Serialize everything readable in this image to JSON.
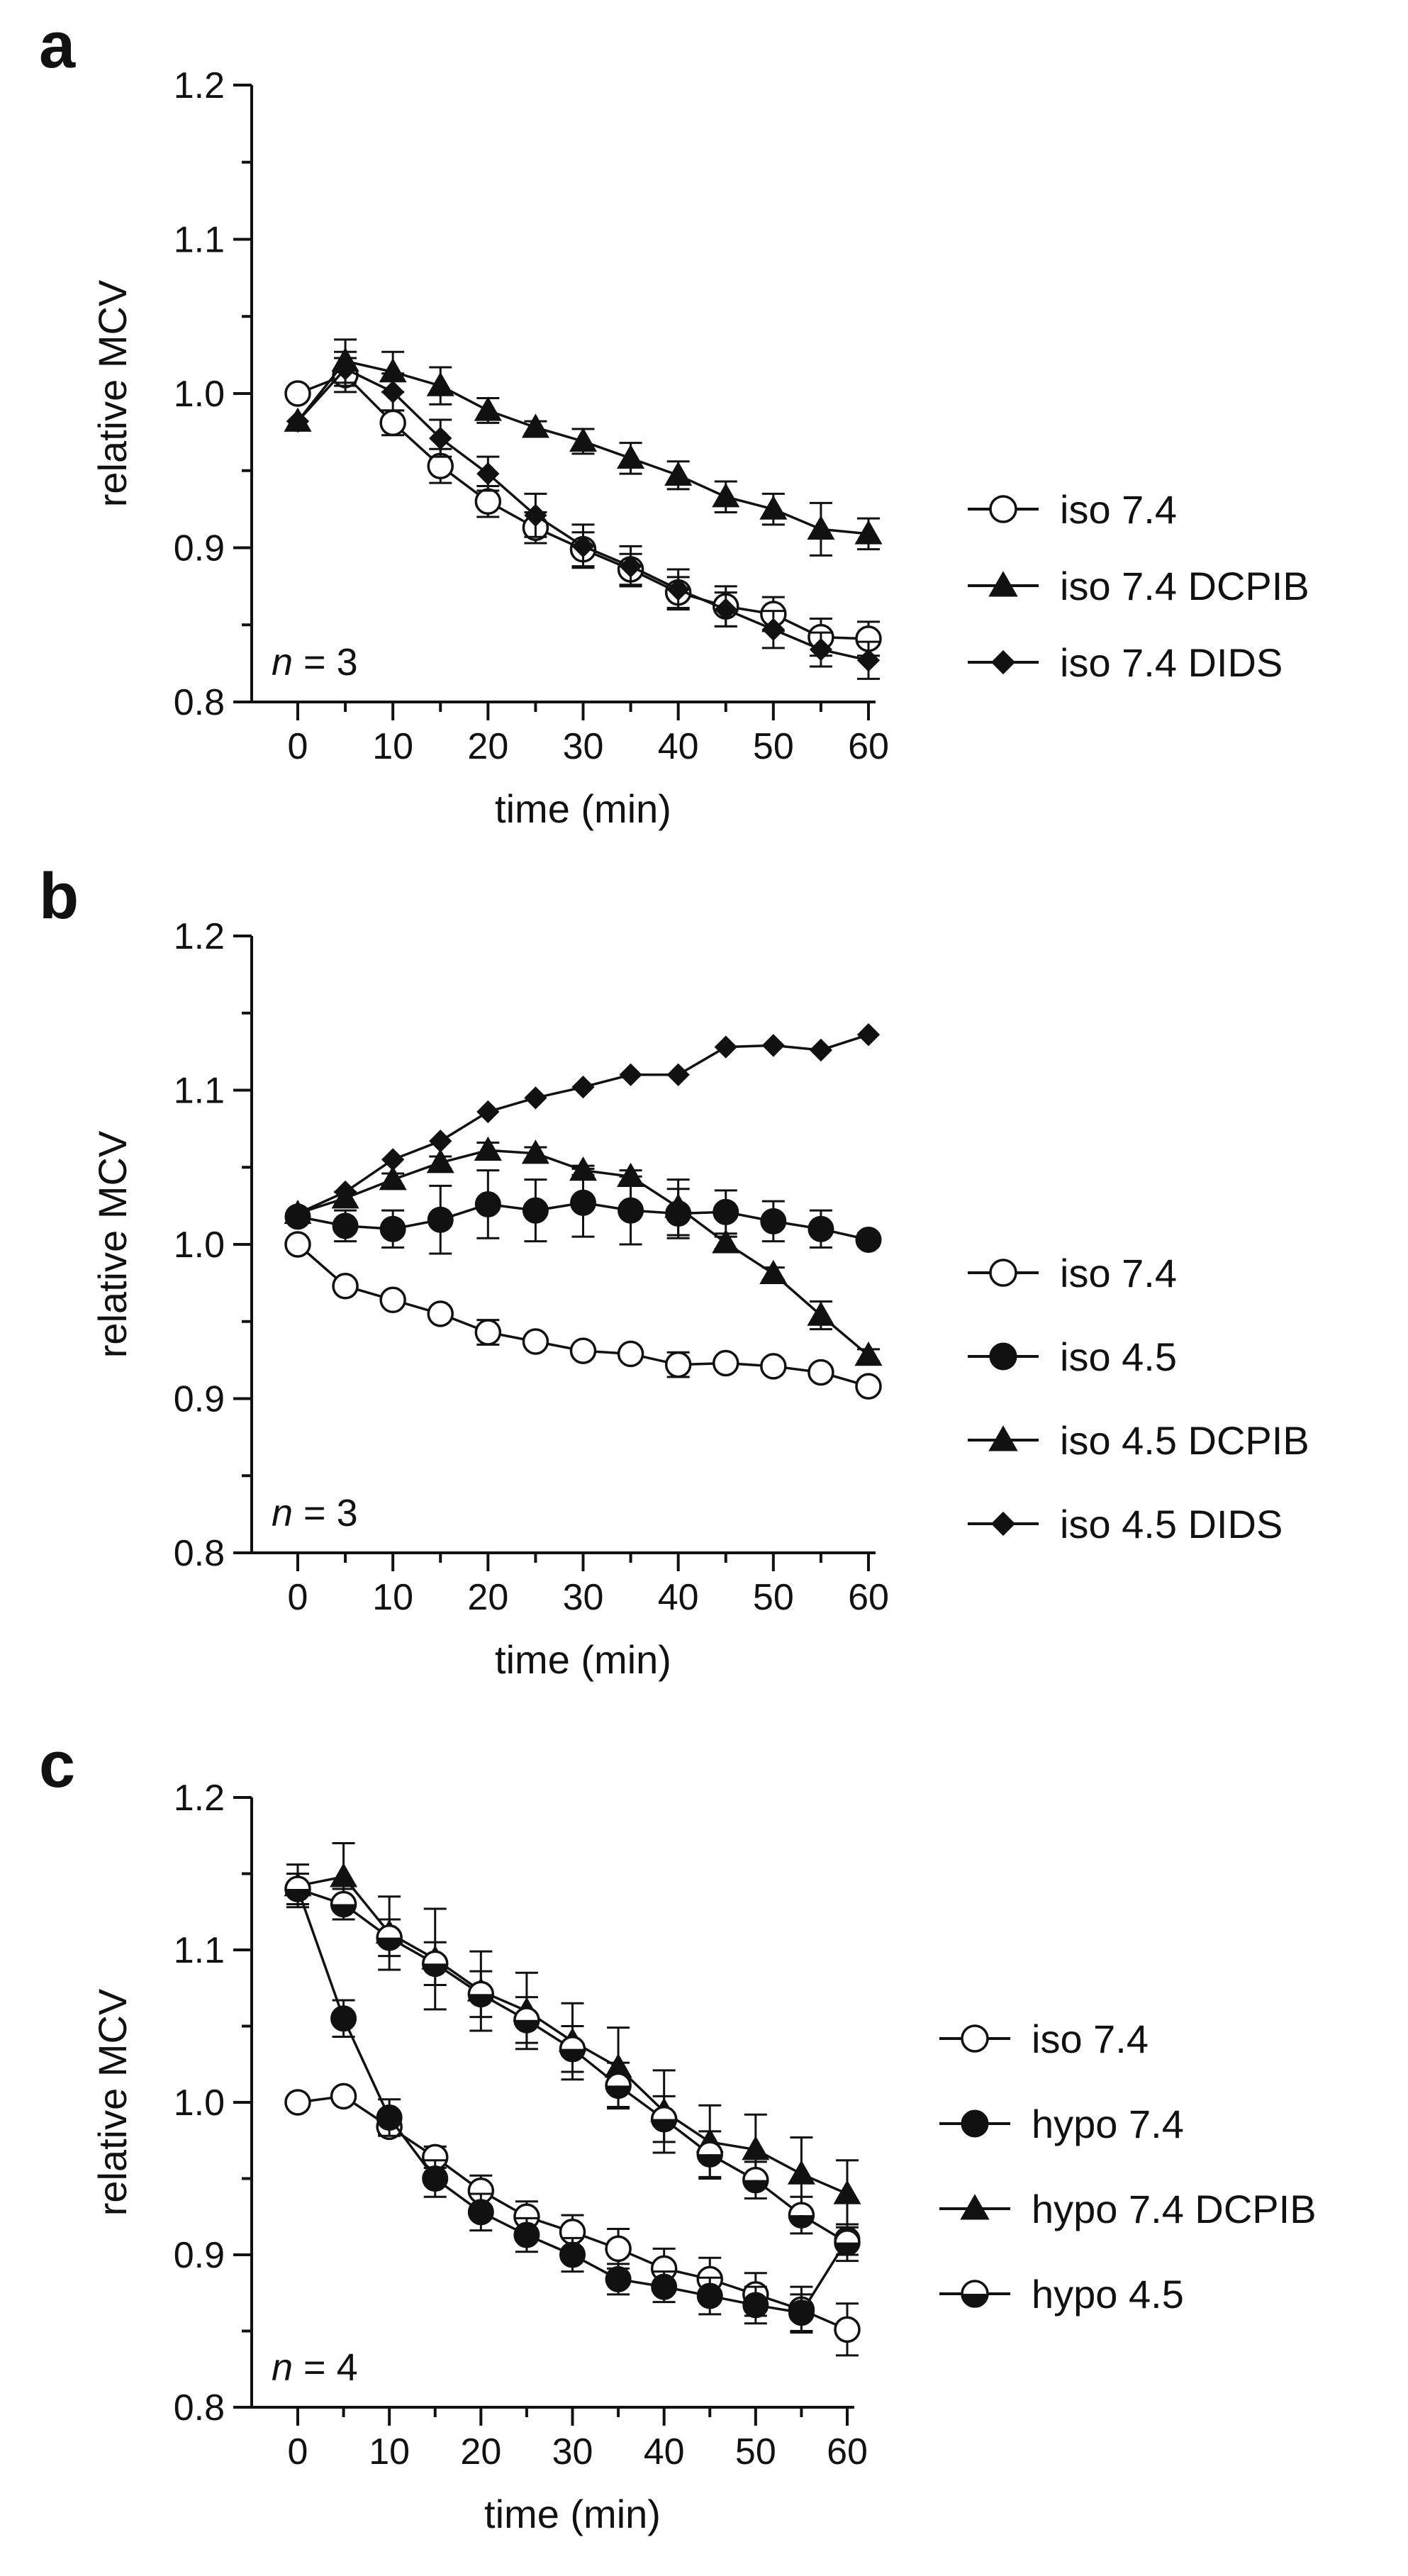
{
  "chart_data": [
    {
      "panel_label": "a",
      "type": "line",
      "xlabel": "time (min)",
      "ylabel": "relative MCV",
      "xlim": [
        0,
        60
      ],
      "ylim": [
        0.8,
        1.2
      ],
      "xticks": [
        0,
        10,
        20,
        30,
        40,
        50,
        60
      ],
      "yticks": [
        "0.8",
        "0.9",
        "1.0",
        "1.1",
        "1.2"
      ],
      "annotation": {
        "italic": "n",
        "rest": " = 3"
      },
      "legend_position": "right",
      "grid": false,
      "x": [
        0,
        5,
        10,
        15,
        20,
        25,
        30,
        35,
        40,
        45,
        50,
        55,
        60
      ],
      "series": [
        {
          "name": "iso 7.4",
          "marker": "circle-open",
          "values": [
            1.0,
            1.012,
            0.981,
            0.953,
            0.93,
            0.913,
            0.899,
            0.886,
            0.871,
            0.862,
            0.857,
            0.842,
            0.841
          ],
          "errors": [
            0.0,
            0.011,
            0.008,
            0.011,
            0.01,
            0.01,
            0.011,
            0.01,
            0.01,
            0.013,
            0.011,
            0.012,
            0.011
          ]
        },
        {
          "name": "iso 7.4 DCPIB",
          "marker": "triangle-filled",
          "values": [
            0.982,
            1.021,
            1.014,
            1.005,
            0.989,
            0.978,
            0.969,
            0.958,
            0.947,
            0.933,
            0.925,
            0.912,
            0.909
          ],
          "errors": [
            0.0,
            0.014,
            0.013,
            0.012,
            0.008,
            0.004,
            0.008,
            0.01,
            0.009,
            0.01,
            0.01,
            0.017,
            0.01
          ]
        },
        {
          "name": "iso 7.4 DIDS",
          "marker": "diamond-filled",
          "values": [
            0.982,
            1.016,
            1.001,
            0.971,
            0.948,
            0.921,
            0.901,
            0.888,
            0.873,
            0.86,
            0.847,
            0.834,
            0.827
          ],
          "errors": [
            0.0,
            0.011,
            0.012,
            0.012,
            0.011,
            0.014,
            0.014,
            0.013,
            0.013,
            0.011,
            0.012,
            0.011,
            0.012
          ]
        }
      ]
    },
    {
      "panel_label": "b",
      "type": "line",
      "xlabel": "time (min)",
      "ylabel": "relative MCV",
      "xlim": [
        0,
        60
      ],
      "ylim": [
        0.8,
        1.2
      ],
      "xticks": [
        0,
        10,
        20,
        30,
        40,
        50,
        60
      ],
      "yticks": [
        "0.8",
        "0.9",
        "1.0",
        "1.1",
        "1.2"
      ],
      "annotation": {
        "italic": "n",
        "rest": " = 3"
      },
      "legend_position": "right",
      "grid": false,
      "x": [
        0,
        5,
        10,
        15,
        20,
        25,
        30,
        35,
        40,
        45,
        50,
        55,
        60
      ],
      "series": [
        {
          "name": "iso 7.4",
          "marker": "circle-open",
          "values": [
            1.0,
            0.973,
            0.964,
            0.955,
            0.943,
            0.937,
            0.931,
            0.929,
            0.922,
            0.923,
            0.921,
            0.917,
            0.908
          ],
          "errors": [
            0.0,
            0.003,
            0.003,
            0.003,
            0.008,
            0.003,
            0.003,
            0.003,
            0.008,
            0.003,
            0.003,
            0.003,
            0.003
          ]
        },
        {
          "name": "iso 4.5",
          "marker": "circle-filled",
          "values": [
            1.018,
            1.012,
            1.01,
            1.016,
            1.026,
            1.022,
            1.027,
            1.022,
            1.02,
            1.021,
            1.015,
            1.01,
            1.003
          ],
          "errors": [
            0.0,
            0.01,
            0.012,
            0.022,
            0.022,
            0.02,
            0.022,
            0.022,
            0.016,
            0.014,
            0.013,
            0.012,
            0.004
          ]
        },
        {
          "name": "iso 4.5 DCPIB",
          "marker": "triangle-filled",
          "values": [
            1.02,
            1.03,
            1.042,
            1.053,
            1.061,
            1.059,
            1.048,
            1.044,
            1.024,
            1.001,
            0.981,
            0.954,
            0.928
          ],
          "errors": [
            0.0,
            0.004,
            0.004,
            0.004,
            0.005,
            0.004,
            0.003,
            0.004,
            0.018,
            0.004,
            0.004,
            0.009,
            0.004
          ]
        },
        {
          "name": "iso 4.5 DIDS",
          "marker": "diamond-filled",
          "values": [
            1.02,
            1.034,
            1.055,
            1.067,
            1.086,
            1.095,
            1.102,
            1.11,
            1.11,
            1.128,
            1.129,
            1.126,
            1.136
          ],
          "errors": [
            0.0,
            0.0,
            0.0,
            0.0,
            0.0,
            0.0,
            0.0,
            0.0,
            0.0,
            0.0,
            0.0,
            0.0,
            0.0
          ]
        }
      ]
    },
    {
      "panel_label": "c",
      "type": "line",
      "xlabel": "time (min)",
      "ylabel": "relative MCV",
      "xlim": [
        0,
        60
      ],
      "ylim": [
        0.8,
        1.2
      ],
      "xticks": [
        0,
        10,
        20,
        30,
        40,
        50,
        60
      ],
      "yticks": [
        "0.8",
        "0.9",
        "1.0",
        "1.1",
        "1.2"
      ],
      "annotation": {
        "italic": "n",
        "rest": " = 4"
      },
      "legend_position": "right",
      "grid": false,
      "x": [
        0,
        5,
        10,
        15,
        20,
        25,
        30,
        35,
        40,
        45,
        50,
        55,
        60
      ],
      "series": [
        {
          "name": "iso 7.4",
          "marker": "circle-open",
          "values": [
            1.0,
            1.004,
            0.984,
            0.964,
            0.942,
            0.925,
            0.915,
            0.904,
            0.891,
            0.884,
            0.874,
            0.864,
            0.851
          ],
          "errors": [
            0.0,
            0.003,
            0.005,
            0.007,
            0.01,
            0.01,
            0.011,
            0.013,
            0.013,
            0.014,
            0.014,
            0.015,
            0.017
          ]
        },
        {
          "name": "hypo 7.4",
          "marker": "circle-filled",
          "values": [
            1.14,
            1.055,
            0.99,
            0.95,
            0.928,
            0.913,
            0.9,
            0.884,
            0.879,
            0.873,
            0.867,
            0.862,
            0.91
          ],
          "errors": [
            0.01,
            0.012,
            0.012,
            0.012,
            0.012,
            0.011,
            0.011,
            0.01,
            0.01,
            0.012,
            0.012,
            0.012,
            0.01
          ]
        },
        {
          "name": "hypo 7.4 DCPIB",
          "marker": "triangle-filled",
          "values": [
            1.142,
            1.148,
            1.111,
            1.094,
            1.073,
            1.06,
            1.04,
            1.023,
            0.994,
            0.974,
            0.969,
            0.953,
            0.94
          ],
          "errors": [
            0.014,
            0.022,
            0.024,
            0.033,
            0.026,
            0.025,
            0.025,
            0.026,
            0.027,
            0.024,
            0.023,
            0.024,
            0.022
          ]
        },
        {
          "name": "hypo 4.5",
          "marker": "circle-half",
          "values": [
            1.14,
            1.13,
            1.108,
            1.091,
            1.071,
            1.054,
            1.035,
            1.011,
            0.989,
            0.966,
            0.949,
            0.926,
            0.908
          ],
          "errors": [
            0.01,
            0.01,
            0.012,
            0.014,
            0.015,
            0.015,
            0.015,
            0.015,
            0.015,
            0.015,
            0.012,
            0.012,
            0.012
          ]
        }
      ]
    }
  ]
}
